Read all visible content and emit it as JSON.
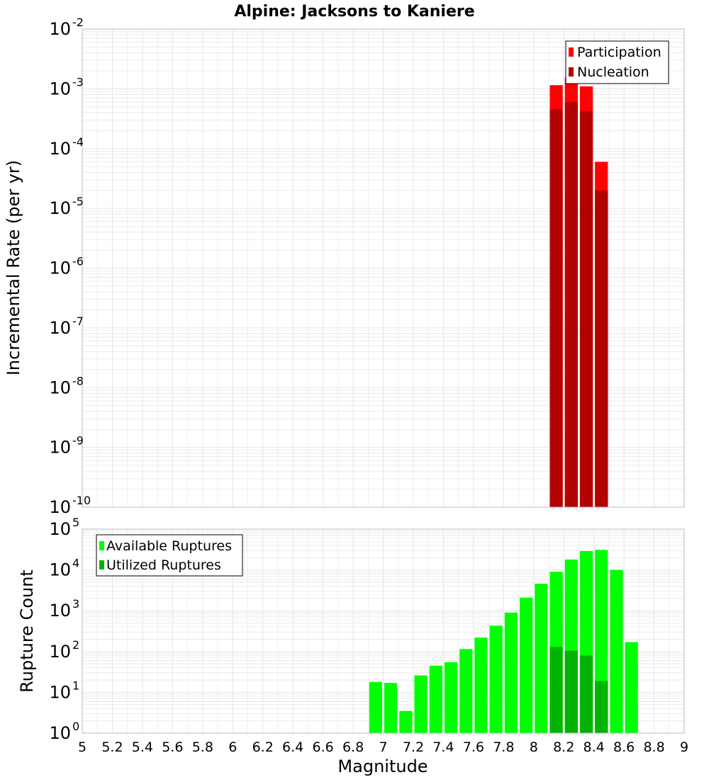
{
  "title": "Alpine: Jacksons to Kaniere",
  "xlabel": "Magnitude",
  "xticks": [
    "5",
    "5.2",
    "5.4",
    "5.6",
    "5.8",
    "6",
    "6.2",
    "6.4",
    "6.6",
    "6.8",
    "7",
    "7.2",
    "7.4",
    "7.6",
    "7.8",
    "8",
    "8.2",
    "8.4",
    "8.6",
    "8.8",
    "9"
  ],
  "colors": {
    "participation": "#ff0000",
    "nucleation": "#b30000",
    "available": "#00ff00",
    "utilized": "#00b300",
    "grid": "#e6e6e6",
    "frame": "#bbbbbb"
  },
  "chart_data": [
    {
      "type": "bar",
      "ylabel": "Incremental Rate (per yr)",
      "yscale": "log",
      "xlim": [
        5,
        9
      ],
      "ylim_exponents": [
        -10,
        -2
      ],
      "ytick_base": "10",
      "ytick_exponents": [
        "-10",
        "-9",
        "-8",
        "-7",
        "-6",
        "-5",
        "-4",
        "-3",
        "-2"
      ],
      "bin_width": 0.1,
      "legend_position": "top-right",
      "series": [
        {
          "name": "Participation",
          "x": [
            8.15,
            8.25,
            8.35,
            8.45
          ],
          "values": [
            0.00115,
            0.00155,
            0.0011,
            6e-05
          ]
        },
        {
          "name": "Nucleation",
          "x": [
            8.15,
            8.25,
            8.35,
            8.45
          ],
          "values": [
            0.00045,
            0.0006,
            0.00042,
            2e-05
          ]
        }
      ]
    },
    {
      "type": "bar",
      "ylabel": "Rupture Count",
      "yscale": "log",
      "xlim": [
        5,
        9
      ],
      "ylim_exponents": [
        0,
        5
      ],
      "ytick_base": "10",
      "ytick_exponents": [
        "0",
        "1",
        "2",
        "3",
        "4",
        "5"
      ],
      "bin_width": 0.1,
      "legend_position": "top-left",
      "series": [
        {
          "name": "Available Ruptures",
          "x": [
            6.95,
            7.05,
            7.15,
            7.25,
            7.35,
            7.45,
            7.55,
            7.65,
            7.75,
            7.85,
            7.95,
            8.05,
            8.15,
            8.25,
            8.35,
            8.45,
            8.55,
            8.65
          ],
          "values": [
            18,
            17,
            3.5,
            26,
            45,
            55,
            115,
            220,
            430,
            900,
            2100,
            4600,
            9000,
            18000,
            29000,
            31000,
            10000,
            170
          ]
        },
        {
          "name": "Utilized Ruptures",
          "x": [
            8.15,
            8.25,
            8.35,
            8.45
          ],
          "values": [
            130,
            105,
            80,
            19
          ]
        }
      ]
    }
  ]
}
